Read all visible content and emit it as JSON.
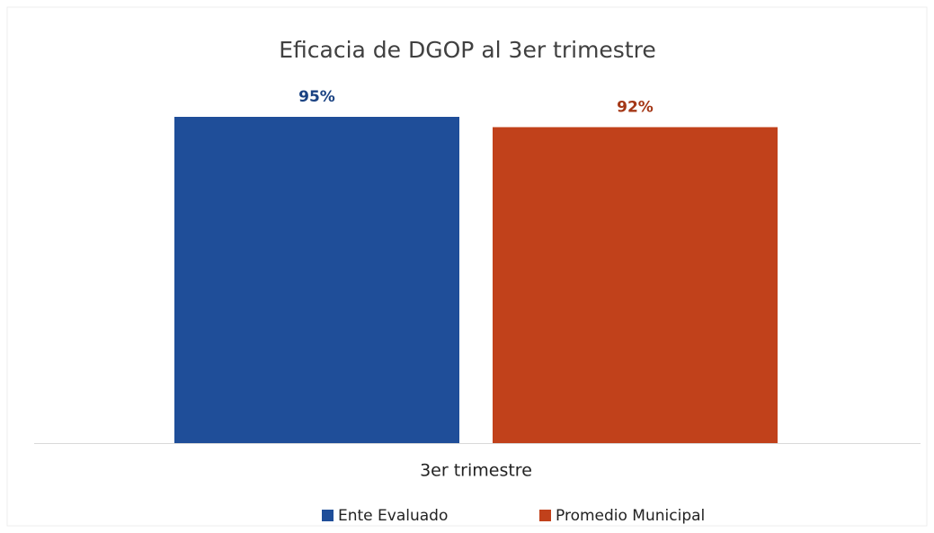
{
  "chart_data": {
    "type": "bar",
    "title": "Eficacia de DGOP al 3er trimestre",
    "categories": [
      "3er trimestre"
    ],
    "series": [
      {
        "name": "Ente Evaluado",
        "color": "#1f4e99",
        "values": [
          95
        ],
        "value_labels": [
          "95%"
        ]
      },
      {
        "name": "Promedio Municipal",
        "color": "#c1411b",
        "values": [
          92
        ],
        "value_labels": [
          "92%"
        ]
      }
    ],
    "legend": "bottom"
  }
}
